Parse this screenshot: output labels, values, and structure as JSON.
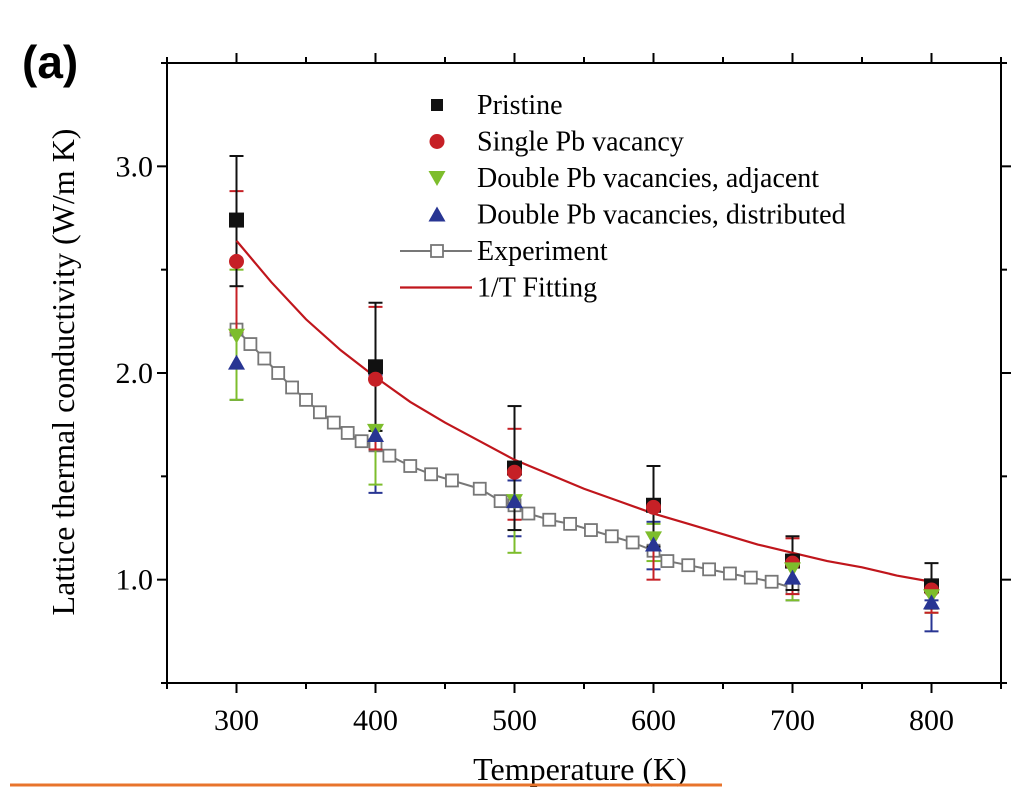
{
  "panel_label": "(a)",
  "colors": {
    "pristine": "#111111",
    "single": "#c62026",
    "adjacent": "#7dbd2c",
    "distributed": "#283593",
    "experiment": "#777777",
    "fit": "#c0161c",
    "underline": "#e8742c"
  },
  "chart_data": {
    "type": "scatter",
    "xlabel": "Temperature (K)",
    "ylabel": "Lattice thermal conductivity (W/m K)",
    "xlim": [
      250,
      850
    ],
    "ylim": [
      0.5,
      3.5
    ],
    "xticks": [
      300,
      400,
      500,
      600,
      700,
      800
    ],
    "yticks": [
      1.0,
      2.0,
      3.0
    ],
    "xtick_labels": [
      "300",
      "400",
      "500",
      "600",
      "700",
      "800"
    ],
    "ytick_labels": [
      "1.0",
      "2.0",
      "3.0"
    ],
    "legend_position": "top-right",
    "series": [
      {
        "name": "Pristine",
        "key": "pristine",
        "marker": "square",
        "x": [
          300,
          400,
          500,
          600,
          700,
          800
        ],
        "y": [
          2.74,
          2.03,
          1.54,
          1.36,
          1.09,
          0.97
        ],
        "err_lo": [
          2.42,
          1.72,
          1.24,
          1.16,
          0.95,
          0.86
        ],
        "err_hi": [
          3.05,
          2.34,
          1.84,
          1.55,
          1.21,
          1.08
        ]
      },
      {
        "name": "Single Pb vacancy",
        "key": "single",
        "marker": "circle",
        "x": [
          300,
          400,
          500,
          600,
          700,
          800
        ],
        "y": [
          2.54,
          1.97,
          1.52,
          1.35,
          1.08,
          0.95
        ],
        "err_lo": [
          2.2,
          1.63,
          1.29,
          1.0,
          0.93,
          0.84
        ],
        "err_hi": [
          2.88,
          2.32,
          1.73,
          1.35,
          1.2,
          1.0
        ]
      },
      {
        "name": "Double Pb vacancies, adjacent",
        "key": "adjacent",
        "marker": "triangle-down",
        "x": [
          300,
          400,
          500,
          600,
          700,
          800
        ],
        "y": [
          2.18,
          1.72,
          1.38,
          1.2,
          1.05,
          0.92
        ],
        "err_lo": [
          1.87,
          1.46,
          1.13,
          1.09,
          0.9,
          0.84
        ],
        "err_hi": [
          2.5,
          1.72,
          1.55,
          1.27,
          1.1,
          0.97
        ]
      },
      {
        "name": "Double Pb vacancies, distributed",
        "key": "distributed",
        "marker": "triangle-up",
        "x": [
          300,
          400,
          500,
          600,
          700,
          800
        ],
        "y": [
          2.05,
          1.7,
          1.38,
          1.17,
          1.01,
          0.89
        ],
        "err_lo": [
          1.87,
          1.42,
          1.21,
          1.05,
          0.9,
          0.75
        ],
        "err_hi": [
          2.2,
          1.99,
          1.48,
          1.28,
          1.1,
          0.9
        ]
      },
      {
        "name": "Experiment",
        "key": "experiment",
        "marker": "open-square",
        "x": [
          300,
          310,
          320,
          330,
          340,
          350,
          360,
          370,
          380,
          390,
          400,
          410,
          425,
          440,
          455,
          475,
          490,
          500,
          510,
          525,
          540,
          555,
          570,
          585,
          600,
          610,
          625,
          640,
          655,
          670,
          685,
          700
        ],
        "y": [
          2.21,
          2.14,
          2.07,
          2.0,
          1.93,
          1.87,
          1.81,
          1.76,
          1.71,
          1.67,
          1.65,
          1.6,
          1.55,
          1.51,
          1.48,
          1.44,
          1.38,
          1.36,
          1.32,
          1.29,
          1.27,
          1.24,
          1.21,
          1.18,
          1.14,
          1.09,
          1.07,
          1.05,
          1.03,
          1.01,
          0.99,
          0.96
        ]
      },
      {
        "name": "1/T Fitting",
        "key": "fit",
        "marker": "line",
        "x": [
          300,
          325,
          350,
          375,
          400,
          425,
          450,
          475,
          500,
          525,
          550,
          575,
          600,
          625,
          650,
          675,
          700,
          725,
          750,
          775,
          800
        ],
        "y": [
          2.64,
          2.44,
          2.26,
          2.11,
          1.98,
          1.86,
          1.76,
          1.67,
          1.58,
          1.51,
          1.44,
          1.38,
          1.32,
          1.27,
          1.22,
          1.17,
          1.13,
          1.09,
          1.06,
          1.02,
          0.99
        ]
      }
    ]
  }
}
